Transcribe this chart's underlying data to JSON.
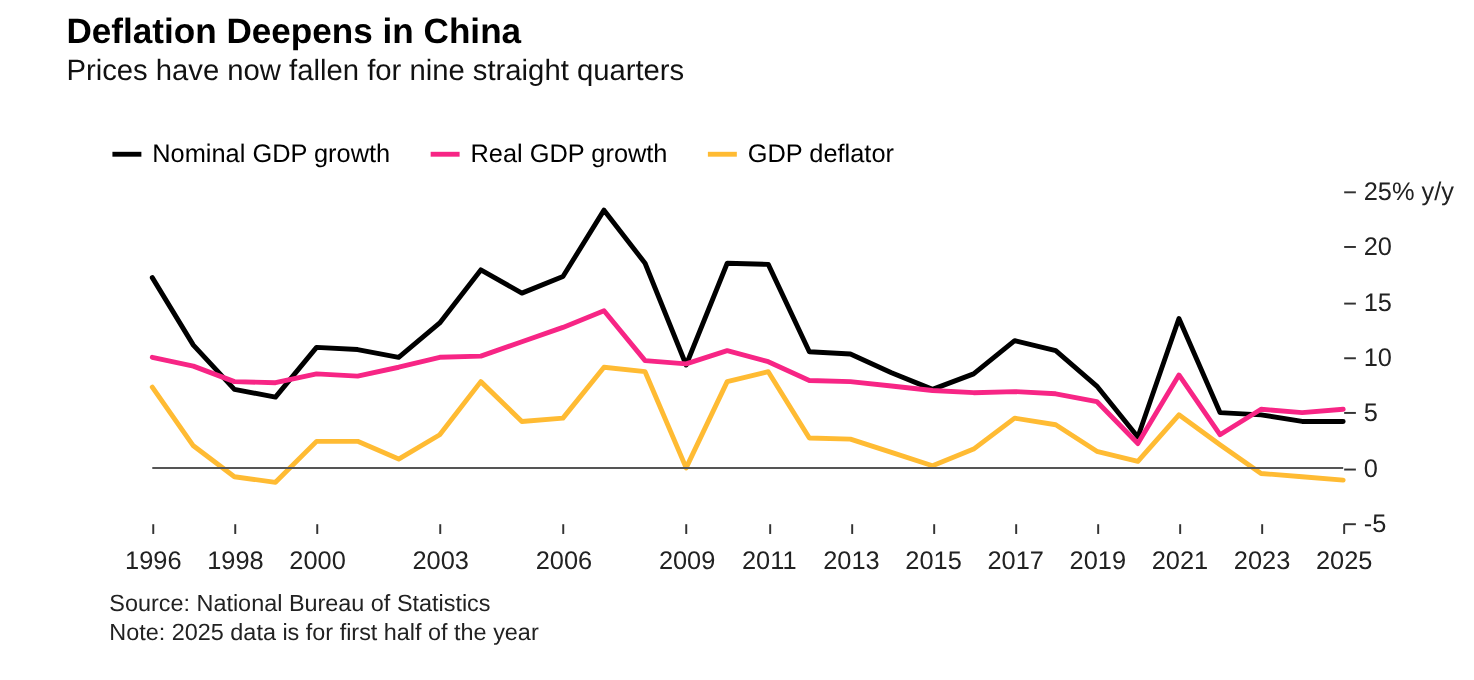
{
  "chart_data": {
    "type": "line",
    "title": "Deflation Deepens in China",
    "subtitle": "Prices have now fallen for nine straight quarters",
    "x": [
      1996,
      1997,
      1998,
      1999,
      2000,
      2001,
      2002,
      2003,
      2004,
      2005,
      2006,
      2007,
      2008,
      2009,
      2010,
      2011,
      2012,
      2013,
      2014,
      2015,
      2016,
      2017,
      2018,
      2019,
      2020,
      2021,
      2022,
      2023,
      2024,
      2025
    ],
    "series": [
      {
        "name": "Nominal GDP growth",
        "color": "#000000",
        "values": [
          17.2,
          11.1,
          7.1,
          6.4,
          10.9,
          10.7,
          10.0,
          13.1,
          17.9,
          15.8,
          17.3,
          23.3,
          18.5,
          9.3,
          18.5,
          18.4,
          10.5,
          10.3,
          8.6,
          7.1,
          8.5,
          11.5,
          10.6,
          7.4,
          2.8,
          13.5,
          5.0,
          4.8,
          4.2,
          4.2
        ]
      },
      {
        "name": "Real GDP growth",
        "color": "#f72585",
        "values": [
          10.0,
          9.2,
          7.8,
          7.7,
          8.5,
          8.3,
          9.1,
          10.0,
          10.1,
          11.4,
          12.7,
          14.2,
          9.7,
          9.4,
          10.6,
          9.6,
          7.9,
          7.8,
          7.4,
          7.0,
          6.8,
          6.9,
          6.7,
          6.0,
          2.2,
          8.4,
          3.0,
          5.3,
          5.0,
          5.3
        ]
      },
      {
        "name": "GDP deflator",
        "color": "#ffbb33",
        "values": [
          7.3,
          2.0,
          -0.8,
          -1.3,
          2.4,
          2.4,
          0.8,
          3.0,
          7.8,
          4.2,
          4.5,
          9.1,
          8.7,
          0.0,
          7.8,
          8.7,
          2.7,
          2.6,
          1.4,
          0.2,
          1.7,
          4.5,
          3.9,
          1.5,
          0.6,
          4.8,
          2.1,
          -0.5,
          -0.8,
          -1.1
        ]
      }
    ],
    "xlim": [
      1996,
      2025
    ],
    "xticks": [
      1996,
      1998,
      2000,
      2003,
      2006,
      2009,
      2011,
      2013,
      2015,
      2017,
      2019,
      2021,
      2023,
      2025
    ],
    "ylim": [
      -5,
      25
    ],
    "yticks": [
      -5,
      0,
      5,
      10,
      15,
      20,
      {
        "value": 25,
        "label": "25% y/y"
      }
    ],
    "ref_lines": [
      {
        "axis": "y",
        "value": 0,
        "color": "#555555"
      }
    ],
    "grid": false,
    "legend": "top left",
    "line_style": "solid",
    "annotations": [
      "Source: National Bureau of Statistics",
      "Note: 2025 data is for first half of the year"
    ]
  }
}
